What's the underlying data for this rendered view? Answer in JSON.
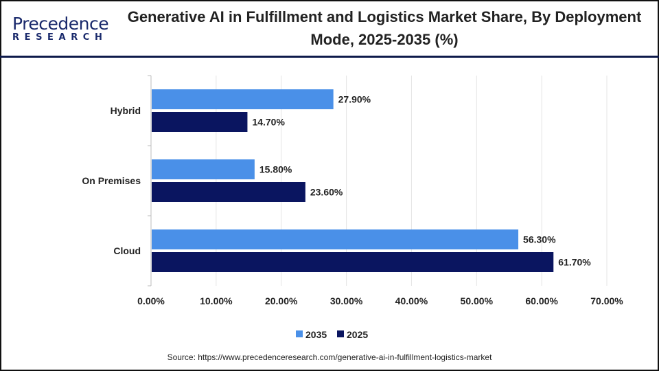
{
  "header": {
    "logo_text": "Precedence",
    "logo_subtext": "RESEARCH",
    "title": "Generative AI in Fulfillment and Logistics Market Share, By Deployment Mode, 2025-2035 (%)"
  },
  "chart_data": {
    "type": "bar",
    "orientation": "horizontal",
    "title": "Generative AI in Fulfillment and Logistics Market Share, By Deployment Mode, 2025-2035 (%)",
    "categories": [
      "Hybrid",
      "On Premises",
      "Cloud"
    ],
    "series": [
      {
        "name": "2035",
        "color": "#4a90e8",
        "values": [
          27.9,
          15.8,
          56.3
        ],
        "labels": [
          "27.90%",
          "15.80%",
          "56.30%"
        ]
      },
      {
        "name": "2025",
        "color": "#0a1560",
        "values": [
          14.7,
          23.6,
          61.7
        ],
        "labels": [
          "14.70%",
          "23.60%",
          "61.70%"
        ]
      }
    ],
    "xlim": [
      0,
      70
    ],
    "xticks": [
      "0.00%",
      "10.00%",
      "20.00%",
      "30.00%",
      "40.00%",
      "50.00%",
      "60.00%",
      "70.00%"
    ],
    "grid": true,
    "legend": "bottom"
  },
  "footer": {
    "source": "Source: https://www.precedenceresearch.com/generative-ai-in-fulfillment-logistics-market"
  }
}
